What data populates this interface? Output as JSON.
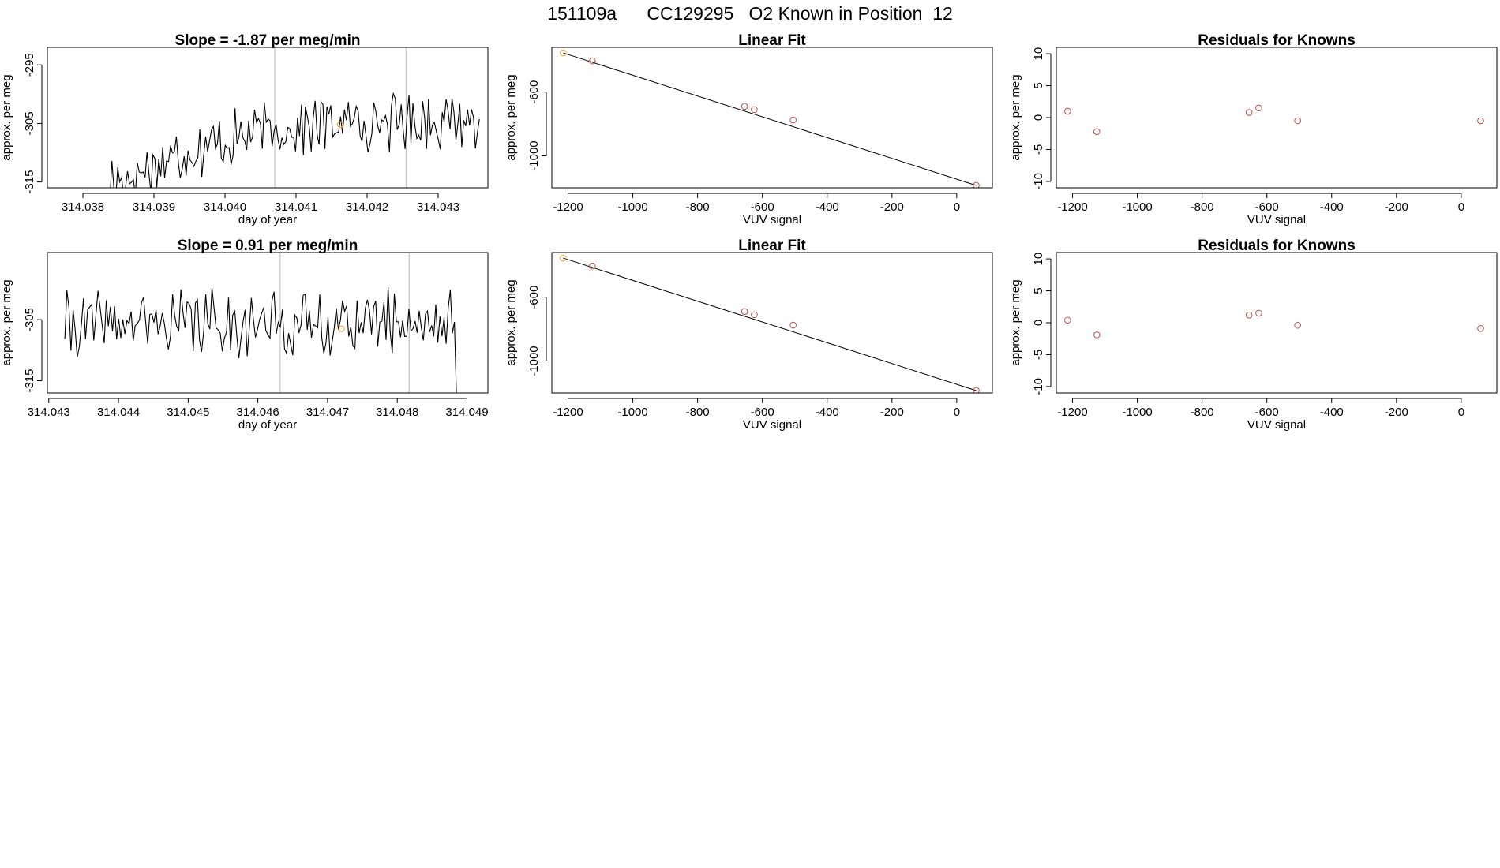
{
  "header": {
    "title": "151109a      CC129295   O2 Known in Position  12"
  },
  "colors": {
    "line": "#000000",
    "point": "#c0504d",
    "highlight": "#f0a030",
    "vline": "#c8c8c8",
    "frame": "#000000"
  },
  "chart_data": [
    {
      "type": "line",
      "title": "Slope =  -1.87  per meg/min",
      "xlabel": "day of year",
      "ylabel": "approx. per meg",
      "xlim": [
        314.0375,
        314.0437
      ],
      "ylim": [
        -316,
        -292
      ],
      "xticks": [
        314.038,
        314.039,
        314.04,
        314.041,
        314.042,
        314.043
      ],
      "xtick_labels": [
        "314.038",
        "314.039",
        "314.040",
        "314.041",
        "314.042",
        "314.043"
      ],
      "yticks": [
        -315,
        -305,
        -295
      ],
      "ytick_labels": [
        "-315",
        "-305",
        "-295"
      ],
      "vlines": [
        314.0407,
        314.04255
      ],
      "highlight_point": {
        "x": 314.04162,
        "y": -305.2
      },
      "x_start": 314.03838,
      "x_end": 314.04358,
      "seed": 17,
      "trend": [
        -315.5,
        -310,
        -306.5,
        -305,
        -304.5,
        -304.5
      ],
      "amplitude": 4.0
    },
    {
      "type": "scatter",
      "title": "Linear Fit",
      "xlabel": "VUV signal",
      "ylabel": "approx. per meg",
      "xlim": [
        -1250,
        110
      ],
      "ylim": [
        -1200,
        -320
      ],
      "xticks": [
        -1200,
        -1000,
        -800,
        -600,
        -400,
        -200,
        0
      ],
      "xtick_labels": [
        "-1200",
        "-1000",
        "-800",
        "-600",
        "-400",
        "-200",
        "0"
      ],
      "yticks": [
        -1000,
        -600
      ],
      "ytick_labels": [
        "-1000",
        "-600"
      ],
      "x": [
        -1215,
        -1125,
        -655,
        -625,
        -505,
        60
      ],
      "y": [
        -355,
        -405,
        -690,
        -710,
        -775,
        -1185
      ],
      "fit": {
        "x": [
          -1215,
          60
        ],
        "y": [
          -355,
          -1185
        ]
      },
      "highlight_index": 0
    },
    {
      "type": "scatter",
      "title": "Residuals for Knowns",
      "xlabel": "VUV signal",
      "ylabel": "approx. per meg",
      "xlim": [
        -1250,
        110
      ],
      "ylim": [
        -11,
        11
      ],
      "xticks": [
        -1200,
        -1000,
        -800,
        -600,
        -400,
        -200,
        0
      ],
      "xtick_labels": [
        "-1200",
        "-1000",
        "-800",
        "-600",
        "-400",
        "-200",
        "0"
      ],
      "yticks": [
        -10,
        -5,
        0,
        5,
        10
      ],
      "ytick_labels": [
        "-10",
        "-5",
        "0",
        "5",
        "10"
      ],
      "x": [
        -1215,
        -1125,
        -655,
        -625,
        -505,
        60
      ],
      "y": [
        1.0,
        -2.2,
        0.8,
        1.5,
        -0.5,
        -0.5
      ]
    },
    {
      "type": "line",
      "title": "Slope =  0.91  per meg/min",
      "xlabel": "day of year",
      "ylabel": "approx. per meg",
      "xlim": [
        314.04298,
        314.0493
      ],
      "ylim": [
        -317,
        -294
      ],
      "xticks": [
        314.043,
        314.044,
        314.045,
        314.046,
        314.047,
        314.048,
        314.049
      ],
      "xtick_labels": [
        "314.043",
        "314.044",
        "314.045",
        "314.046",
        "314.047",
        "314.048",
        "314.049"
      ],
      "yticks": [
        -315,
        -305
      ],
      "ytick_labels": [
        "-315",
        "-305"
      ],
      "vlines": [
        314.04632,
        314.04817
      ],
      "highlight_point": {
        "x": 314.0472,
        "y": -306.5
      },
      "x_start": 314.04323,
      "x_end": 314.04885,
      "seed": 41,
      "trend": [
        -306,
        -305.5,
        -305.5,
        -306,
        -305,
        -305.5
      ],
      "amplitude": 4.3
    },
    {
      "type": "scatter",
      "title": "Linear Fit",
      "xlabel": "VUV signal",
      "ylabel": "approx. per meg",
      "xlim": [
        -1250,
        110
      ],
      "ylim": [
        -1200,
        -320
      ],
      "xticks": [
        -1200,
        -1000,
        -800,
        -600,
        -400,
        -200,
        0
      ],
      "xtick_labels": [
        "-1200",
        "-1000",
        "-800",
        "-600",
        "-400",
        "-200",
        "0"
      ],
      "yticks": [
        -1000,
        -600
      ],
      "ytick_labels": [
        "-1000",
        "-600"
      ],
      "x": [
        -1215,
        -1125,
        -655,
        -625,
        -505,
        60
      ],
      "y": [
        -355,
        -405,
        -690,
        -710,
        -775,
        -1185
      ],
      "fit": {
        "x": [
          -1215,
          60
        ],
        "y": [
          -355,
          -1185
        ]
      },
      "highlight_index": 0
    },
    {
      "type": "scatter",
      "title": "Residuals for Knowns",
      "xlabel": "VUV signal",
      "ylabel": "approx. per meg",
      "xlim": [
        -1250,
        110
      ],
      "ylim": [
        -11,
        11
      ],
      "xticks": [
        -1200,
        -1000,
        -800,
        -600,
        -400,
        -200,
        0
      ],
      "xtick_labels": [
        "-1200",
        "-1000",
        "-800",
        "-600",
        "-400",
        "-200",
        "0"
      ],
      "yticks": [
        -10,
        -5,
        0,
        5,
        10
      ],
      "ytick_labels": [
        "-10",
        "-5",
        "0",
        "5",
        "10"
      ],
      "x": [
        -1215,
        -1125,
        -655,
        -625,
        -505,
        60
      ],
      "y": [
        0.4,
        -1.9,
        1.2,
        1.5,
        -0.4,
        -0.9
      ]
    }
  ]
}
